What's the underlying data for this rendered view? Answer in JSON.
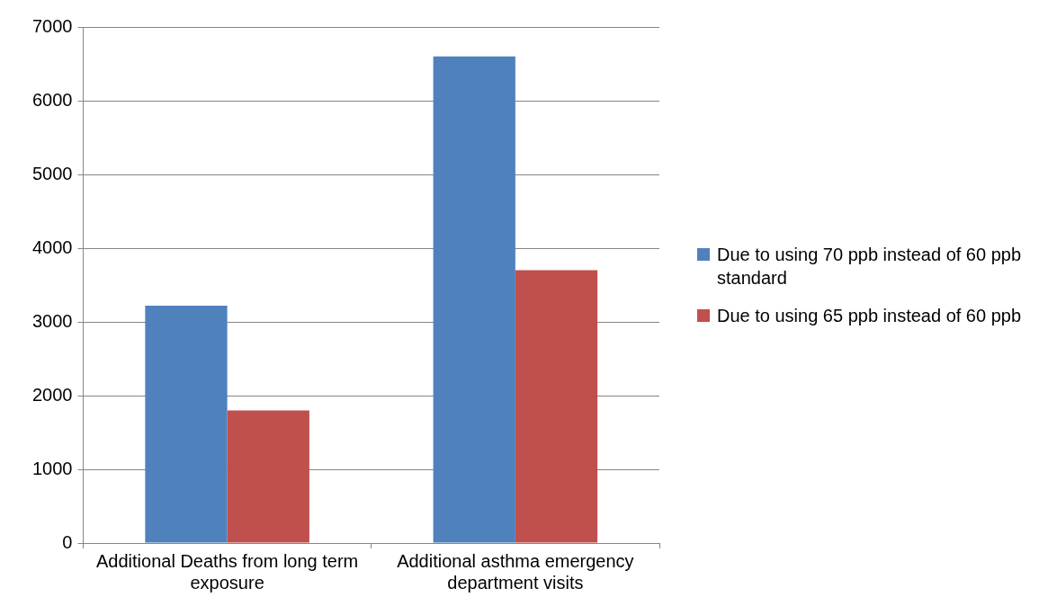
{
  "chart_data": {
    "type": "bar",
    "categories": [
      "Additional Deaths from long term exposure",
      "Additional asthma emergency department visits"
    ],
    "series": [
      {
        "name": "Due to using 70 ppb instead of 60 ppb standard",
        "color": "#4f81bd",
        "values": [
          3220,
          6600
        ]
      },
      {
        "name": "Due to using 65 ppb instead of 60 ppb",
        "color": "#c0504d",
        "values": [
          1800,
          3700
        ]
      }
    ],
    "ylim": [
      0,
      7000
    ],
    "yticks": [
      0,
      1000,
      2000,
      3000,
      4000,
      5000,
      6000,
      7000
    ],
    "grid": "y",
    "legend": "right"
  }
}
